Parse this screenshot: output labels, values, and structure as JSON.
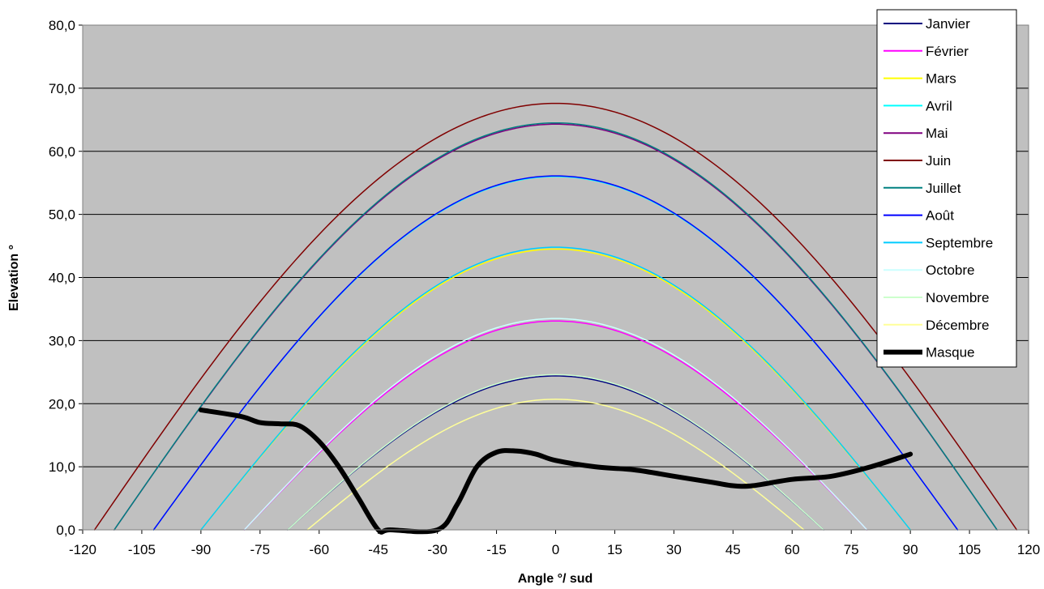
{
  "chart_data": {
    "type": "line",
    "xlabel": "Angle °/ sud",
    "ylabel": "Elevation °",
    "xlim": [
      -120,
      120
    ],
    "ylim": [
      0,
      80
    ],
    "x_ticks": [
      "-120",
      "-105",
      "-90",
      "-75",
      "-60",
      "-45",
      "-30",
      "-15",
      "0",
      "15",
      "30",
      "45",
      "60",
      "75",
      "90",
      "105",
      "120"
    ],
    "y_ticks": [
      "0,0",
      "10,0",
      "20,0",
      "30,0",
      "40,0",
      "50,0",
      "60,0",
      "70,0",
      "80,0"
    ],
    "grid": "horizontal",
    "plot_background": "#c0c0c0",
    "legend_position": "right",
    "series": [
      {
        "name": "Janvier",
        "color": "#000080",
        "width": 1.5,
        "peak": 24.4,
        "half_width": 68
      },
      {
        "name": "Février",
        "color": "#ff00ff",
        "width": 1.5,
        "peak": 33.1,
        "half_width": 79
      },
      {
        "name": "Mars",
        "color": "#ffff00",
        "width": 1.5,
        "peak": 44.5,
        "half_width": 90
      },
      {
        "name": "Avril",
        "color": "#00ffff",
        "width": 1.5,
        "peak": 56.0,
        "half_width": 102
      },
      {
        "name": "Mai",
        "color": "#800080",
        "width": 1.5,
        "peak": 64.3,
        "half_width": 112
      },
      {
        "name": "Juin",
        "color": "#800000",
        "width": 1.5,
        "peak": 67.6,
        "half_width": 117
      },
      {
        "name": "Juillet",
        "color": "#008080",
        "width": 1.5,
        "peak": 64.5,
        "half_width": 112
      },
      {
        "name": "Août",
        "color": "#0000ff",
        "width": 1.5,
        "peak": 56.1,
        "half_width": 102
      },
      {
        "name": "Septembre",
        "color": "#00ccff",
        "width": 1.5,
        "peak": 44.8,
        "half_width": 90
      },
      {
        "name": "Octobre",
        "color": "#ccffff",
        "width": 1.5,
        "peak": 33.5,
        "half_width": 79
      },
      {
        "name": "Novembre",
        "color": "#ccffcc",
        "width": 1.5,
        "peak": 24.6,
        "half_width": 68
      },
      {
        "name": "Décembre",
        "color": "#ffff99",
        "width": 1.5,
        "peak": 20.7,
        "half_width": 63
      },
      {
        "name": "Masque",
        "color": "#000000",
        "width": 6,
        "x": [
          -90,
          -80,
          -75,
          -70,
          -65,
          -60,
          -55,
          -50,
          -45,
          -42,
          -30,
          -25,
          -20,
          -15,
          -10,
          -5,
          0,
          10,
          20,
          30,
          40,
          45,
          50,
          60,
          70,
          80,
          90
        ],
        "y": [
          19,
          18,
          17,
          16.8,
          16.5,
          14,
          10,
          5,
          0,
          0,
          0,
          4,
          10,
          12.3,
          12.5,
          12,
          11,
          10,
          9.5,
          8.5,
          7.5,
          7,
          7,
          8,
          8.5,
          10,
          12
        ]
      }
    ]
  }
}
